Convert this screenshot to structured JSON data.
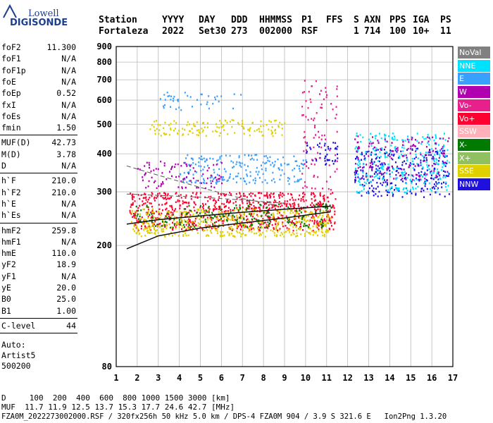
{
  "logo": {
    "line1": "Lowell",
    "line2": "DIGISONDE"
  },
  "header": {
    "labels": [
      "Station",
      "YYYY",
      "DAY",
      "DDD",
      "HHMMSS",
      "P1",
      "FFS",
      "S",
      "AXN",
      "PPS",
      "IGA",
      "PS"
    ],
    "values": [
      "Fortaleza",
      "2022",
      "Set30",
      "273",
      "002000",
      "RSF",
      "",
      "1",
      "714",
      "100",
      "10+",
      "11"
    ]
  },
  "params": {
    "group1": [
      {
        "label": "foF2",
        "value": "11.300"
      },
      {
        "label": "foF1",
        "value": "N/A"
      },
      {
        "label": "foF1p",
        "value": "N/A"
      },
      {
        "label": "foE",
        "value": "N/A"
      },
      {
        "label": "foEp",
        "value": "0.52"
      },
      {
        "label": "fxI",
        "value": "N/A"
      },
      {
        "label": "foEs",
        "value": "N/A"
      },
      {
        "label": "fmin",
        "value": "1.50"
      }
    ],
    "group2": [
      {
        "label": "MUF(D)",
        "value": "42.73"
      },
      {
        "label": "M(D)",
        "value": "3.78"
      },
      {
        "label": "D",
        "value": "N/A"
      }
    ],
    "group3": [
      {
        "label": "h`F",
        "value": "210.0"
      },
      {
        "label": "h`F2",
        "value": "210.0"
      },
      {
        "label": "h`E",
        "value": "N/A"
      },
      {
        "label": "h`Es",
        "value": "N/A"
      }
    ],
    "group4": [
      {
        "label": "hmF2",
        "value": "259.8"
      },
      {
        "label": "hmF1",
        "value": "N/A"
      },
      {
        "label": "hmE",
        "value": "110.0"
      },
      {
        "label": "yF2",
        "value": "18.9"
      },
      {
        "label": "yF1",
        "value": "N/A"
      },
      {
        "label": "yE",
        "value": "20.0"
      },
      {
        "label": "B0",
        "value": "25.0"
      },
      {
        "label": "B1",
        "value": "1.00"
      }
    ],
    "group5": [
      {
        "label": "C-level",
        "value": "44"
      }
    ],
    "auto": [
      "Auto:",
      "Artist5",
      "500200"
    ]
  },
  "legend": [
    {
      "label": "NoVal",
      "color": "#808080"
    },
    {
      "label": "NNE",
      "color": "#00e0ff"
    },
    {
      "label": "E",
      "color": "#3aa0ff"
    },
    {
      "label": "W",
      "color": "#b000b0"
    },
    {
      "label": "Vo-",
      "color": "#e8208c"
    },
    {
      "label": "Vo+",
      "color": "#ff0030"
    },
    {
      "label": "SSW",
      "color": "#ffb0b8"
    },
    {
      "label": "X-",
      "color": "#007a00"
    },
    {
      "label": "X+",
      "color": "#90c060"
    },
    {
      "label": "SSE",
      "color": "#e0d000"
    },
    {
      "label": "NNW",
      "color": "#2010e0"
    }
  ],
  "footer": {
    "line1": "D     100  200  400  600  800 1000 1500 3000 [km]",
    "line2": "MUF  11.7 11.9 12.5 13.7 15.3 17.7 24.6 42.7 [MHz]",
    "line3": "FZA0M_2022273002000.RSF / 320fx256h 50 kHz 5.0 km / DPS-4 FZA0M 904 / 3.9 S 321.6 E   Ion2Png 1.3.20"
  },
  "chart_data": {
    "type": "scatter",
    "title": "",
    "xlabel": "",
    "ylabel": "",
    "xlim": [
      1,
      17
    ],
    "ylim": [
      80,
      900
    ],
    "yscale": "log",
    "x_ticks": [
      1,
      2,
      3,
      4,
      5,
      6,
      7,
      8,
      9,
      10,
      11,
      12,
      13,
      14,
      15,
      16,
      17
    ],
    "y_ticks": [
      80,
      200,
      300,
      400,
      500,
      600,
      700,
      800,
      900
    ],
    "grid": true,
    "legend_position": "right",
    "clusters": [
      {
        "name": "Vo+",
        "color": "#ff0030",
        "x": [
          1.6,
          11.4
        ],
        "y": [
          225,
          300
        ],
        "density": 0.9
      },
      {
        "name": "SSE",
        "color": "#e0d000",
        "x": [
          1.7,
          11.2
        ],
        "y": [
          215,
          265
        ],
        "density": 0.8
      },
      {
        "name": "X-",
        "color": "#007a00",
        "x": [
          1.8,
          11.2
        ],
        "y": [
          230,
          275
        ],
        "density": 0.35
      },
      {
        "name": "E",
        "color": "#3aa0ff",
        "x": [
          4.0,
          10.0
        ],
        "y": [
          320,
          400
        ],
        "density": 0.5
      },
      {
        "name": "W",
        "color": "#b000b0",
        "x": [
          2.0,
          6.0
        ],
        "y": [
          310,
          380
        ],
        "density": 0.35
      },
      {
        "name": "SSE",
        "color": "#e0d000",
        "x": [
          2.5,
          9.0
        ],
        "y": [
          460,
          520
        ],
        "density": 0.55
      },
      {
        "name": "E",
        "color": "#3aa0ff",
        "x": [
          3.0,
          7.0
        ],
        "y": [
          560,
          640
        ],
        "density": 0.25
      },
      {
        "name": "NNW",
        "color": "#2010e0",
        "x": [
          10.0,
          11.5
        ],
        "y": [
          370,
          440
        ],
        "density": 0.55
      },
      {
        "name": "NNW",
        "color": "#2010e0",
        "x": [
          12.3,
          16.8
        ],
        "y": [
          290,
          420
        ],
        "density": 0.55
      },
      {
        "name": "NNE",
        "color": "#00e0ff",
        "x": [
          12.3,
          16.8
        ],
        "y": [
          300,
          470
        ],
        "density": 0.45
      },
      {
        "name": "W",
        "color": "#b000b0",
        "x": [
          12.3,
          16.8
        ],
        "y": [
          330,
          460
        ],
        "density": 0.3
      },
      {
        "name": "Vo-",
        "color": "#e8208c",
        "x": [
          9.8,
          11.5
        ],
        "y": [
          300,
          700
        ],
        "density": 0.2
      }
    ],
    "curves": [
      {
        "name": "profile",
        "points": [
          [
            1.5,
            195
          ],
          [
            3,
            215
          ],
          [
            5,
            228
          ],
          [
            7,
            237
          ],
          [
            9,
            246
          ],
          [
            11.2,
            258
          ]
        ]
      },
      {
        "name": "trace",
        "points": [
          [
            1.5,
            235
          ],
          [
            3,
            243
          ],
          [
            5,
            250
          ],
          [
            7,
            257
          ],
          [
            9,
            263
          ],
          [
            11.2,
            269
          ]
        ]
      },
      {
        "name": "dashed-upper",
        "points": [
          [
            1.5,
            365
          ],
          [
            3,
            340
          ],
          [
            5,
            310
          ],
          [
            7,
            285
          ],
          [
            8.5,
            272
          ]
        ]
      },
      {
        "name": "dashed-lower",
        "points": [
          [
            1.5,
            295
          ],
          [
            3,
            292
          ],
          [
            5,
            288
          ],
          [
            7,
            282
          ],
          [
            9,
            275
          ]
        ]
      }
    ]
  }
}
